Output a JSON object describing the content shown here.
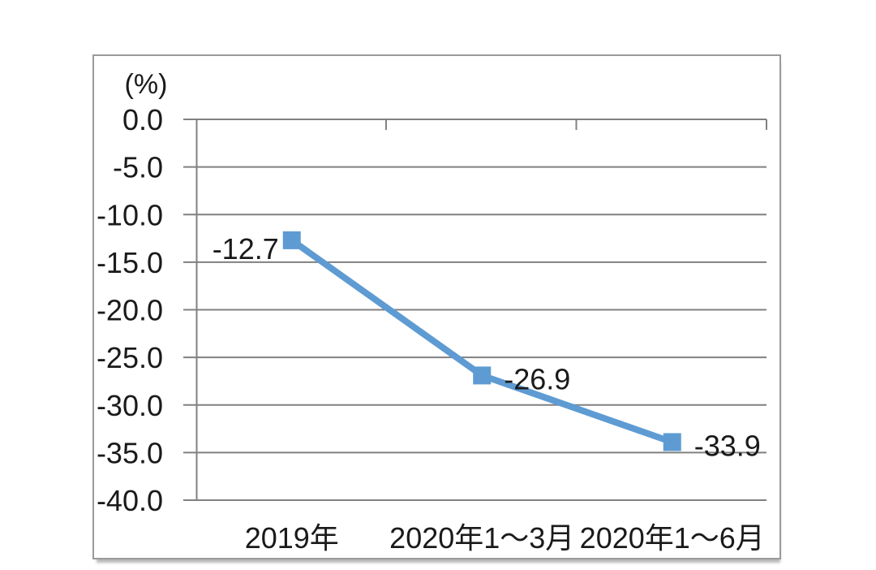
{
  "page": {
    "background_color": "#ffffff",
    "frame_border_color": "#9a9a9a"
  },
  "chart_data": {
    "type": "line",
    "title": "",
    "unit_label": "(%)",
    "categories": [
      "2019年",
      "2020年1～3月",
      "2020年1～6月"
    ],
    "series": [
      {
        "values": [
          -12.7,
          -26.9,
          -33.9
        ],
        "data_labels": [
          "-12.7",
          "-26.9",
          "-33.9"
        ],
        "data_label_sides": [
          "left",
          "right",
          "right"
        ],
        "line_color": "#5E9BD3",
        "marker": "square",
        "marker_color": "#5E9BD3"
      }
    ],
    "y_ticks": [
      0,
      -5,
      -10,
      -15,
      -20,
      -25,
      -30,
      -35,
      -40
    ],
    "y_tick_labels": [
      "0.0",
      "-5.0",
      "-10.0",
      "-15.0",
      "-20.0",
      "-25.0",
      "-30.0",
      "-35.0",
      "-40.0"
    ],
    "ylim": [
      -40,
      0
    ],
    "grid": true,
    "gridline_color": "#808080",
    "axis_color": "#808080",
    "text_color": "#1a1a1a",
    "legend": null
  }
}
